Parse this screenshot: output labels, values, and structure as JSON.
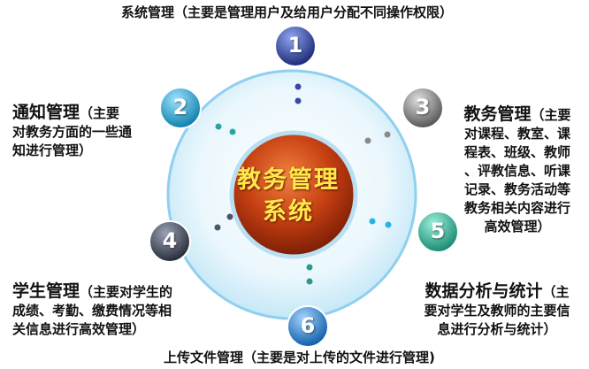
{
  "center": {
    "title": "教务管理\n系统"
  },
  "nodes": [
    {
      "number": "1",
      "heading": "系统管理",
      "detail": "（主要是管理用户及给用户分配不同操作权限）",
      "color": "#2a3b9a"
    },
    {
      "number": "2",
      "heading": "通知管理",
      "detail": "（主要\n对教务方面的一些通\n知进行管理）",
      "color": "#1a9ec7"
    },
    {
      "number": "3",
      "heading": "教务管理",
      "detail": "（主要\n对课程、教室、课\n程表、班级、教师\n、评教信息、听课\n记录、教务活动等\n教务相关内容进行\n高效管理）",
      "color": "#6a6a6a"
    },
    {
      "number": "4",
      "heading": "学生管理",
      "detail": "（主要对学生的\n成绩、考勤、缴费情况等相\n关信息进行高效管理）",
      "color": "#3c4250"
    },
    {
      "number": "5",
      "heading": "数据分析与统计",
      "detail": "（主\n要对学生及教师的主要信\n息进行分析与统计）",
      "color": "#21a68e"
    },
    {
      "number": "6",
      "heading": "上传文件管理",
      "detail": "（主要是对上传的文件进行管理)",
      "color": "#1877c9"
    }
  ]
}
